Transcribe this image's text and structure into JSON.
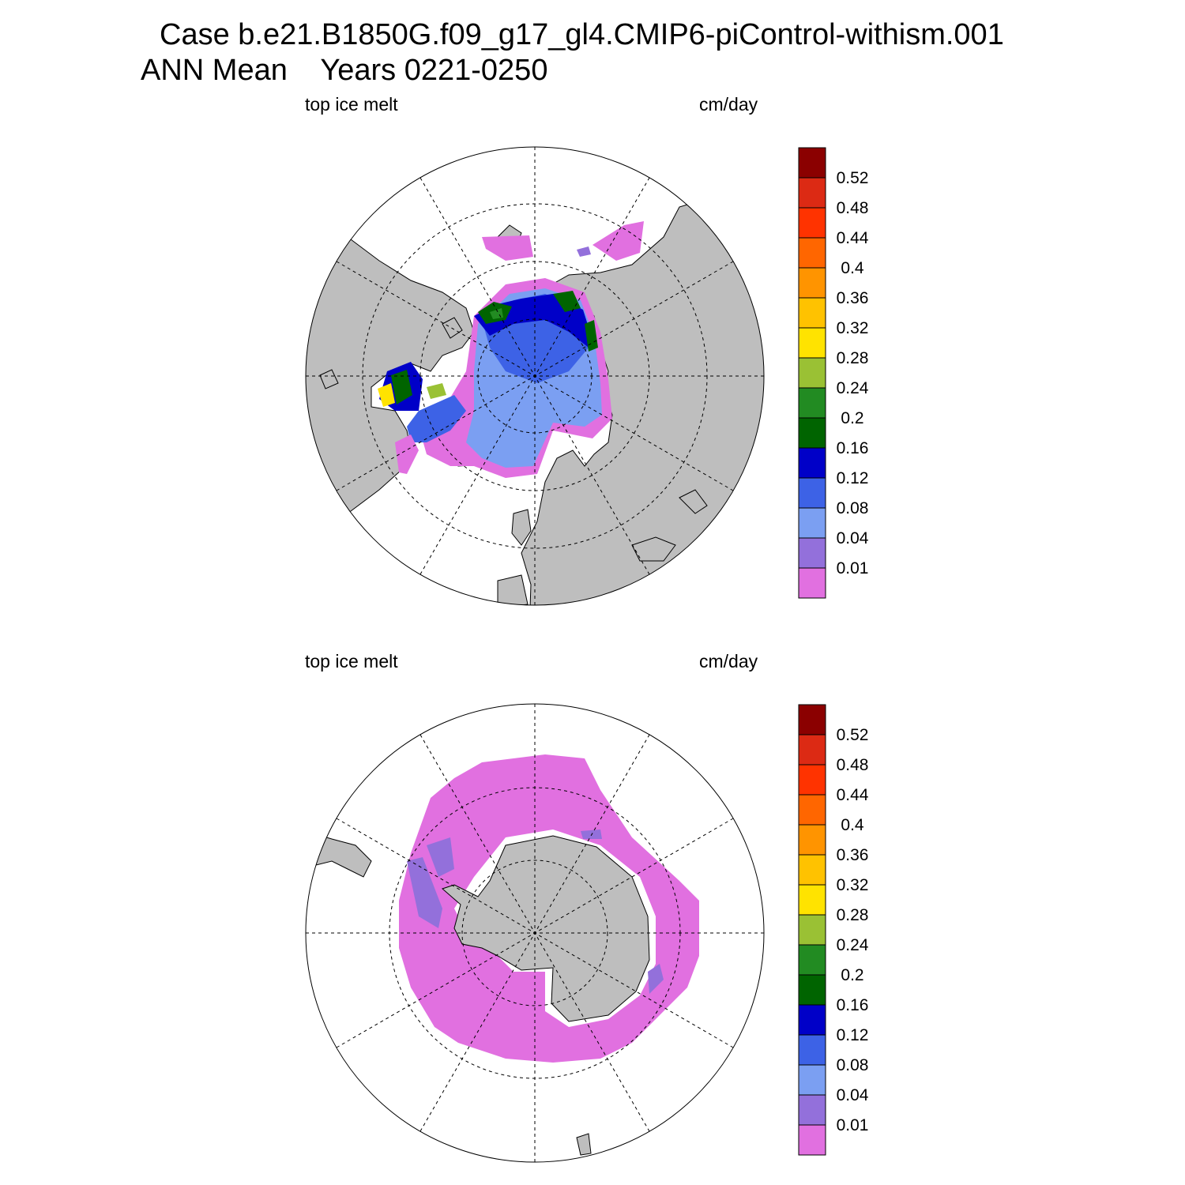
{
  "title": {
    "line1": "Case b.e21.B1850G.f09_g17_gl4.CMIP6-piControl-withism.001",
    "line2": "ANN Mean    Years 0221-0250"
  },
  "colors": {
    "land": "#bebebe",
    "background": "#ffffff",
    "levels": [
      "#e170e0",
      "#9370db",
      "#7b9ff2",
      "#3d62e6",
      "#0000c8",
      "#006400",
      "#228b22",
      "#9ac134",
      "#ffe300",
      "#ffc200",
      "#ff9400",
      "#ff6600",
      "#ff3300",
      "#dc2a14",
      "#8b0000"
    ]
  },
  "colorbar": {
    "labels": [
      "0.01",
      "0.04",
      "0.08",
      "0.12",
      "0.16",
      "0.2",
      "0.24",
      "0.28",
      "0.32",
      "0.36",
      "0.4",
      "0.44",
      "0.48",
      "0.52"
    ]
  },
  "panels": [
    {
      "id": "north",
      "hemisphere": "north",
      "variable": "top ice melt",
      "units": "cm/day"
    },
    {
      "id": "south",
      "hemisphere": "south",
      "variable": "top ice melt",
      "units": "cm/day"
    }
  ]
}
